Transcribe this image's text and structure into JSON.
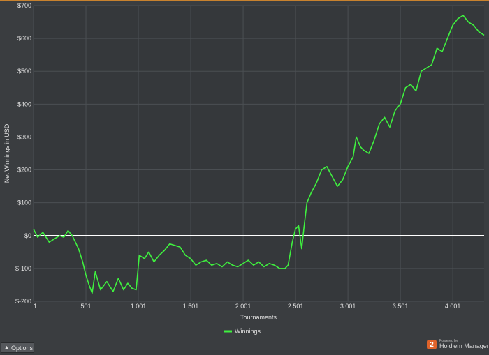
{
  "chart_data": {
    "type": "line",
    "xlabel": "Tournaments",
    "ylabel": "Net Winnings in USD",
    "xlim": [
      1,
      4300
    ],
    "ylim": [
      -200,
      700
    ],
    "x_ticks": [
      1,
      501,
      1001,
      1501,
      2001,
      2501,
      3001,
      3501,
      4001
    ],
    "x_tick_labels": [
      "1",
      "501",
      "1 001",
      "1 501",
      "2 001",
      "2 501",
      "3 001",
      "3 501",
      "4 001"
    ],
    "y_ticks": [
      -200,
      -100,
      0,
      100,
      200,
      300,
      400,
      500,
      600,
      700
    ],
    "y_tick_labels": [
      "$-200",
      "$-100",
      "$0",
      "$100",
      "$200",
      "$300",
      "$400",
      "$500",
      "$600",
      "$700"
    ],
    "grid": true,
    "zero_line": true,
    "legend_position": "bottom-center",
    "series": [
      {
        "name": "Winnings",
        "color": "#3ff03f",
        "x": [
          1,
          40,
          90,
          150,
          200,
          250,
          290,
          330,
          370,
          400,
          430,
          470,
          500,
          530,
          560,
          590,
          640,
          700,
          760,
          810,
          860,
          900,
          940,
          980,
          1010,
          1060,
          1100,
          1150,
          1200,
          1250,
          1300,
          1350,
          1400,
          1450,
          1500,
          1550,
          1600,
          1650,
          1700,
          1750,
          1800,
          1850,
          1900,
          1950,
          2000,
          2050,
          2100,
          2150,
          2200,
          2250,
          2300,
          2350,
          2400,
          2430,
          2470,
          2500,
          2530,
          2560,
          2580,
          2610,
          2650,
          2700,
          2750,
          2800,
          2850,
          2900,
          2950,
          3000,
          3050,
          3080,
          3120,
          3150,
          3200,
          3250,
          3300,
          3350,
          3400,
          3450,
          3500,
          3550,
          3600,
          3650,
          3700,
          3750,
          3800,
          3850,
          3900,
          3950,
          4000,
          4050,
          4100,
          4150,
          4200,
          4250,
          4300
        ],
        "y": [
          20,
          -5,
          10,
          -20,
          -10,
          0,
          -5,
          15,
          0,
          -20,
          -40,
          -80,
          -120,
          -150,
          -175,
          -110,
          -165,
          -140,
          -170,
          -130,
          -165,
          -145,
          -160,
          -165,
          -60,
          -70,
          -50,
          -80,
          -60,
          -45,
          -25,
          -30,
          -35,
          -60,
          -70,
          -90,
          -80,
          -75,
          -90,
          -85,
          -95,
          -80,
          -90,
          -95,
          -85,
          -75,
          -90,
          -80,
          -95,
          -85,
          -90,
          -100,
          -100,
          -90,
          -20,
          20,
          30,
          -40,
          20,
          100,
          130,
          160,
          200,
          210,
          180,
          150,
          170,
          210,
          240,
          300,
          270,
          260,
          250,
          290,
          340,
          360,
          330,
          380,
          400,
          450,
          460,
          440,
          500,
          510,
          520,
          570,
          560,
          600,
          640,
          660,
          670,
          650,
          640,
          620,
          610
        ]
      }
    ]
  },
  "legend": {
    "label": "Winnings"
  },
  "options": {
    "label": "Options"
  },
  "brand": {
    "powered": "Powered by",
    "name": "Hold'em Manager",
    "logo": "2"
  }
}
